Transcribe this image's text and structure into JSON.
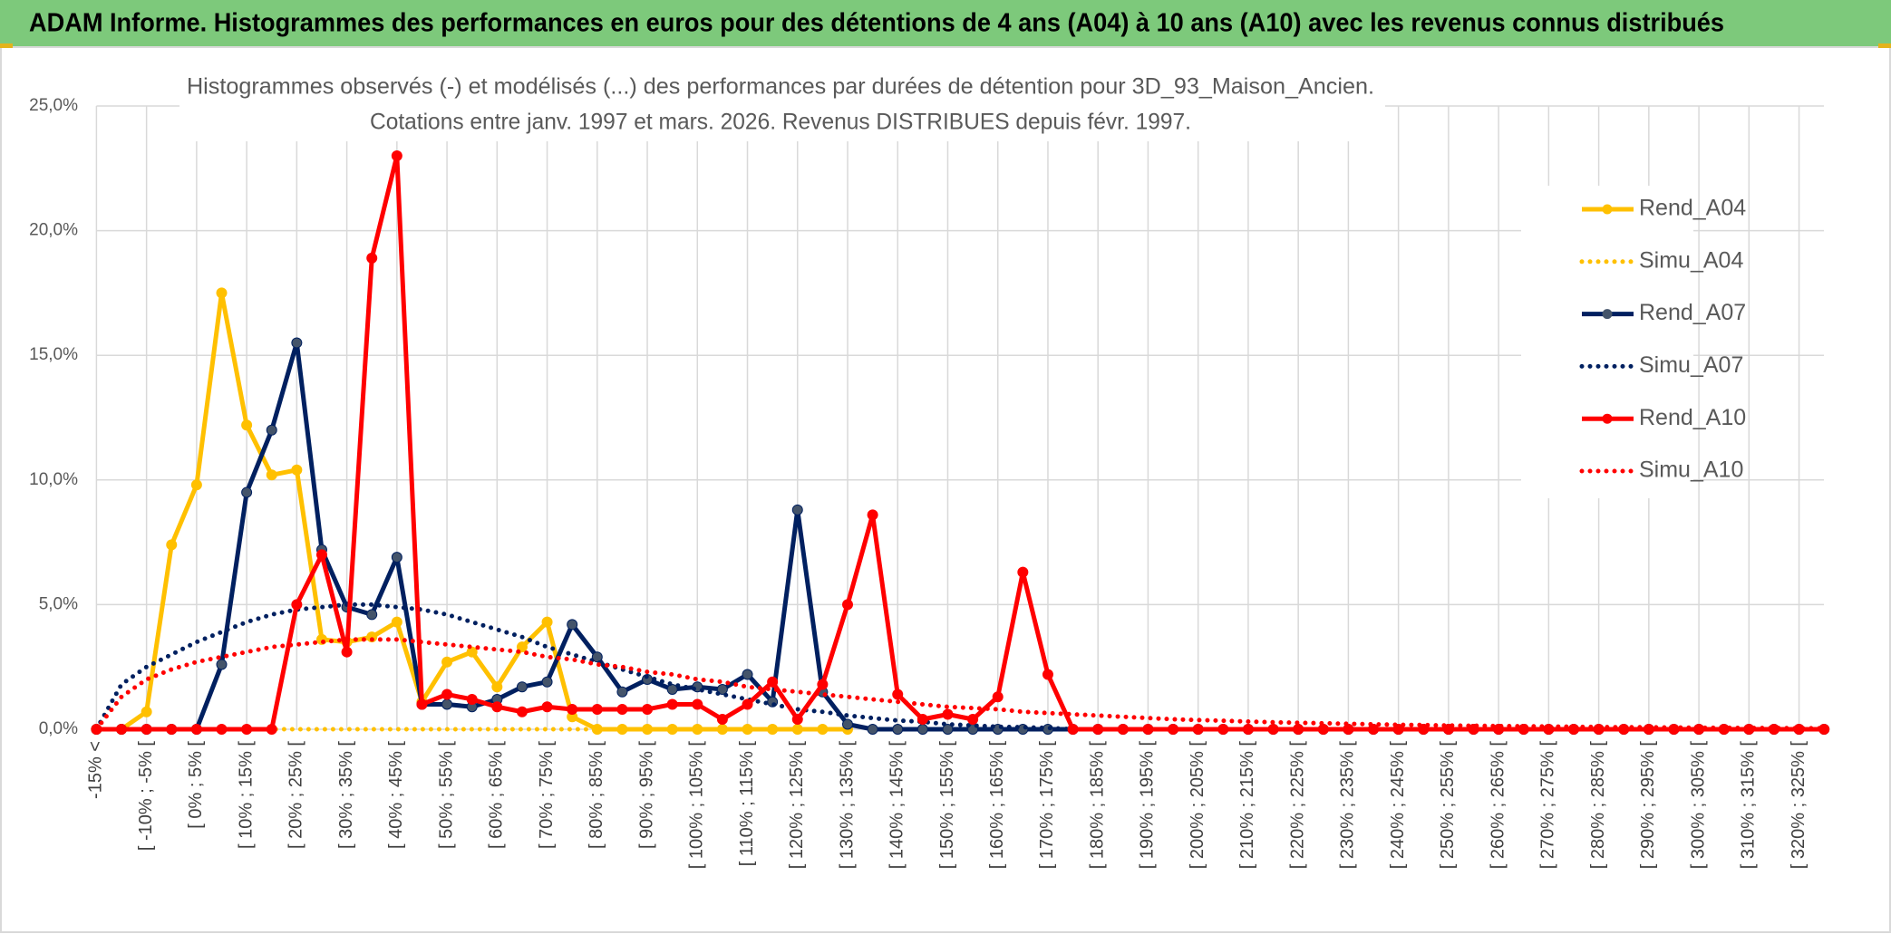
{
  "header": {
    "title": "ADAM Informe. Histogrammes des performances en euros pour des détentions de 4 ans (A04) à 10 ans (A10) avec les revenus connus distribués"
  },
  "chart_data": {
    "type": "line",
    "title": "Histogrammes observés (-) et modélisés (...) des performances par durées de détention pour 3D_93_Maison_Ancien.",
    "subtitle": "Cotations entre janv. 1997 et mars. 2026. Revenus DISTRIBUES depuis févr. 1997.",
    "categories": [
      "-15% <",
      null,
      "[ -10% ; -5% [",
      null,
      "[ 0% ; 5% [",
      null,
      "[ 10% ; 15% [",
      null,
      "[ 20% ; 25% [",
      null,
      "[ 30% ; 35% [",
      null,
      "[ 40% ; 45% [",
      null,
      "[ 50% ; 55% [",
      null,
      "[ 60% ; 65% [",
      null,
      "[ 70% ; 75% [",
      null,
      "[ 80% ; 85% [",
      null,
      "[ 90% ; 95% [",
      null,
      "[ 100% ; 105% [",
      null,
      "[ 110% ; 115% [",
      null,
      "[ 120% ; 125% [",
      null,
      "[ 130% ; 135% [",
      null,
      "[ 140% ; 145% [",
      null,
      "[ 150% ; 155% [",
      null,
      "[ 160% ; 165% [",
      null,
      "[ 170% ; 175% [",
      null,
      "[ 180% ; 185% [",
      null,
      "[ 190% ; 195% [",
      null,
      "[ 200% ; 205% [",
      null,
      "[ 210% ; 215% [",
      null,
      "[ 220% ; 225% [",
      null,
      "[ 230% ; 235% [",
      null,
      "[ 240% ; 245% [",
      null,
      "[ 250% ; 255% [",
      null,
      "[ 260% ; 265% [",
      null,
      "[ 270% ; 275% [",
      null,
      "[ 280% ; 285% [",
      null,
      "[ 290% ; 295% [",
      null,
      "[ 300% ; 305% [",
      null,
      "[ 310% ; 315% [",
      null,
      "[ 320% ; 325% [",
      null
    ],
    "series": [
      {
        "name": "Rend_A04",
        "color": "#ffc000",
        "style": "solid",
        "markers": true,
        "values": [
          0,
          0,
          0.7,
          7.4,
          9.8,
          17.5,
          12.2,
          10.2,
          10.4,
          3.6,
          3.5,
          3.7,
          4.3,
          1.1,
          2.7,
          3.1,
          1.7,
          3.3,
          4.3,
          0.5,
          0,
          0,
          0,
          0,
          0,
          0,
          0,
          0,
          0,
          0,
          0,
          null,
          null,
          null,
          null,
          null,
          null,
          null,
          null,
          null,
          null,
          null,
          null,
          null,
          null,
          null,
          null,
          null,
          null,
          null,
          null,
          null,
          null,
          null,
          null,
          null,
          null,
          null,
          null,
          null,
          null,
          null,
          null,
          null,
          null,
          null,
          null,
          null,
          null,
          null
        ]
      },
      {
        "name": "Simu_A04",
        "color": "#ffc000",
        "style": "dotted",
        "markers": false,
        "values": [
          0,
          0,
          0,
          0,
          0,
          0,
          0,
          0,
          0,
          0,
          0,
          0,
          0,
          0,
          0,
          0,
          0,
          0,
          0,
          0,
          0,
          0,
          0,
          0,
          0,
          0,
          0,
          0,
          0,
          0,
          0,
          null,
          null,
          null,
          null,
          null,
          null,
          null,
          null,
          null,
          null,
          null,
          null,
          null,
          null,
          null,
          null,
          null,
          null,
          null,
          null,
          null,
          null,
          null,
          null,
          null,
          null,
          null,
          null,
          null,
          null,
          null,
          null,
          null,
          null,
          null,
          null,
          null,
          null,
          null
        ]
      },
      {
        "name": "Rend_A07",
        "color": "#002060",
        "style": "solid",
        "markers": true,
        "marker_color": "#44546a",
        "values": [
          0,
          0,
          0,
          0,
          0,
          2.6,
          9.5,
          12.0,
          15.5,
          7.2,
          4.9,
          4.6,
          6.9,
          1.0,
          1.0,
          0.9,
          1.2,
          1.7,
          1.9,
          4.2,
          2.9,
          1.5,
          2.0,
          1.6,
          1.7,
          1.6,
          2.2,
          1.1,
          8.8,
          1.5,
          0.2,
          0,
          0,
          0,
          0,
          0,
          0,
          0,
          0,
          0,
          0,
          0,
          0,
          0,
          0,
          0,
          0,
          0,
          0,
          0,
          0,
          0,
          0,
          0,
          0,
          0,
          0,
          0,
          0,
          0,
          0,
          0,
          0,
          0,
          0,
          0,
          0,
          0,
          0,
          0
        ]
      },
      {
        "name": "Simu_A07",
        "color": "#002060",
        "style": "dotted",
        "markers": false,
        "values": [
          0,
          1.8,
          2.5,
          3.0,
          3.5,
          3.9,
          4.3,
          4.6,
          4.8,
          4.9,
          5.0,
          5.0,
          4.9,
          4.8,
          4.6,
          4.3,
          4.0,
          3.7,
          3.3,
          3.0,
          2.7,
          2.4,
          2.1,
          1.8,
          1.6,
          1.4,
          1.2,
          1.0,
          0.8,
          0.7,
          0.55,
          0.45,
          0.35,
          0.3,
          0.2,
          0.15,
          0.1,
          0.08,
          0.05,
          0,
          0,
          0,
          0,
          0,
          0,
          0,
          0,
          0,
          0,
          0,
          0,
          0,
          0,
          0,
          0,
          0,
          0,
          0,
          0,
          0,
          0,
          0,
          0,
          0,
          0,
          0,
          0,
          0,
          0,
          0
        ]
      },
      {
        "name": "Rend_A10",
        "color": "#ff0000",
        "style": "solid",
        "markers": true,
        "values": [
          0,
          0,
          0,
          0,
          0,
          0,
          0,
          0,
          5.0,
          7.0,
          3.1,
          18.9,
          23.0,
          1.0,
          1.4,
          1.2,
          0.9,
          0.7,
          0.9,
          0.8,
          0.8,
          0.8,
          0.8,
          1.0,
          1.0,
          0.4,
          1.0,
          1.9,
          0.4,
          1.8,
          5.0,
          8.6,
          1.4,
          0.4,
          0.6,
          0.4,
          1.3,
          6.3,
          2.2,
          0,
          0,
          0,
          0,
          0,
          0,
          0,
          0,
          0,
          0,
          0,
          0,
          0,
          0,
          0,
          0,
          0,
          0,
          0,
          0,
          0,
          0,
          0,
          0,
          0,
          0,
          0,
          0,
          0,
          0,
          0
        ]
      },
      {
        "name": "Simu_A10",
        "color": "#ff0000",
        "style": "dotted",
        "markers": false,
        "values": [
          0,
          1.3,
          2.0,
          2.4,
          2.7,
          2.9,
          3.1,
          3.3,
          3.4,
          3.5,
          3.6,
          3.6,
          3.6,
          3.5,
          3.4,
          3.3,
          3.2,
          3.1,
          2.9,
          2.8,
          2.6,
          2.5,
          2.3,
          2.2,
          2.0,
          1.9,
          1.7,
          1.6,
          1.5,
          1.4,
          1.3,
          1.2,
          1.1,
          1.0,
          0.9,
          0.85,
          0.8,
          0.7,
          0.65,
          0.6,
          0.55,
          0.5,
          0.45,
          0.4,
          0.37,
          0.34,
          0.31,
          0.28,
          0.26,
          0.24,
          0.22,
          0.2,
          0.18,
          0.17,
          0.15,
          0.14,
          0.13,
          0.12,
          0.11,
          0.1,
          0.09,
          0.08,
          0.08,
          0.07,
          0.06,
          0.06,
          0.05,
          0.05,
          0.04,
          0.04
        ]
      }
    ],
    "ylim": [
      0,
      25
    ],
    "yticks": [
      {
        "value": 0,
        "label": "0,0%"
      },
      {
        "value": 5,
        "label": "5,0%"
      },
      {
        "value": 10,
        "label": "10,0%"
      },
      {
        "value": 15,
        "label": "15,0%"
      },
      {
        "value": 20,
        "label": "20,0%"
      },
      {
        "value": 25,
        "label": "25,0%"
      }
    ],
    "grid": true,
    "legend": "right"
  }
}
